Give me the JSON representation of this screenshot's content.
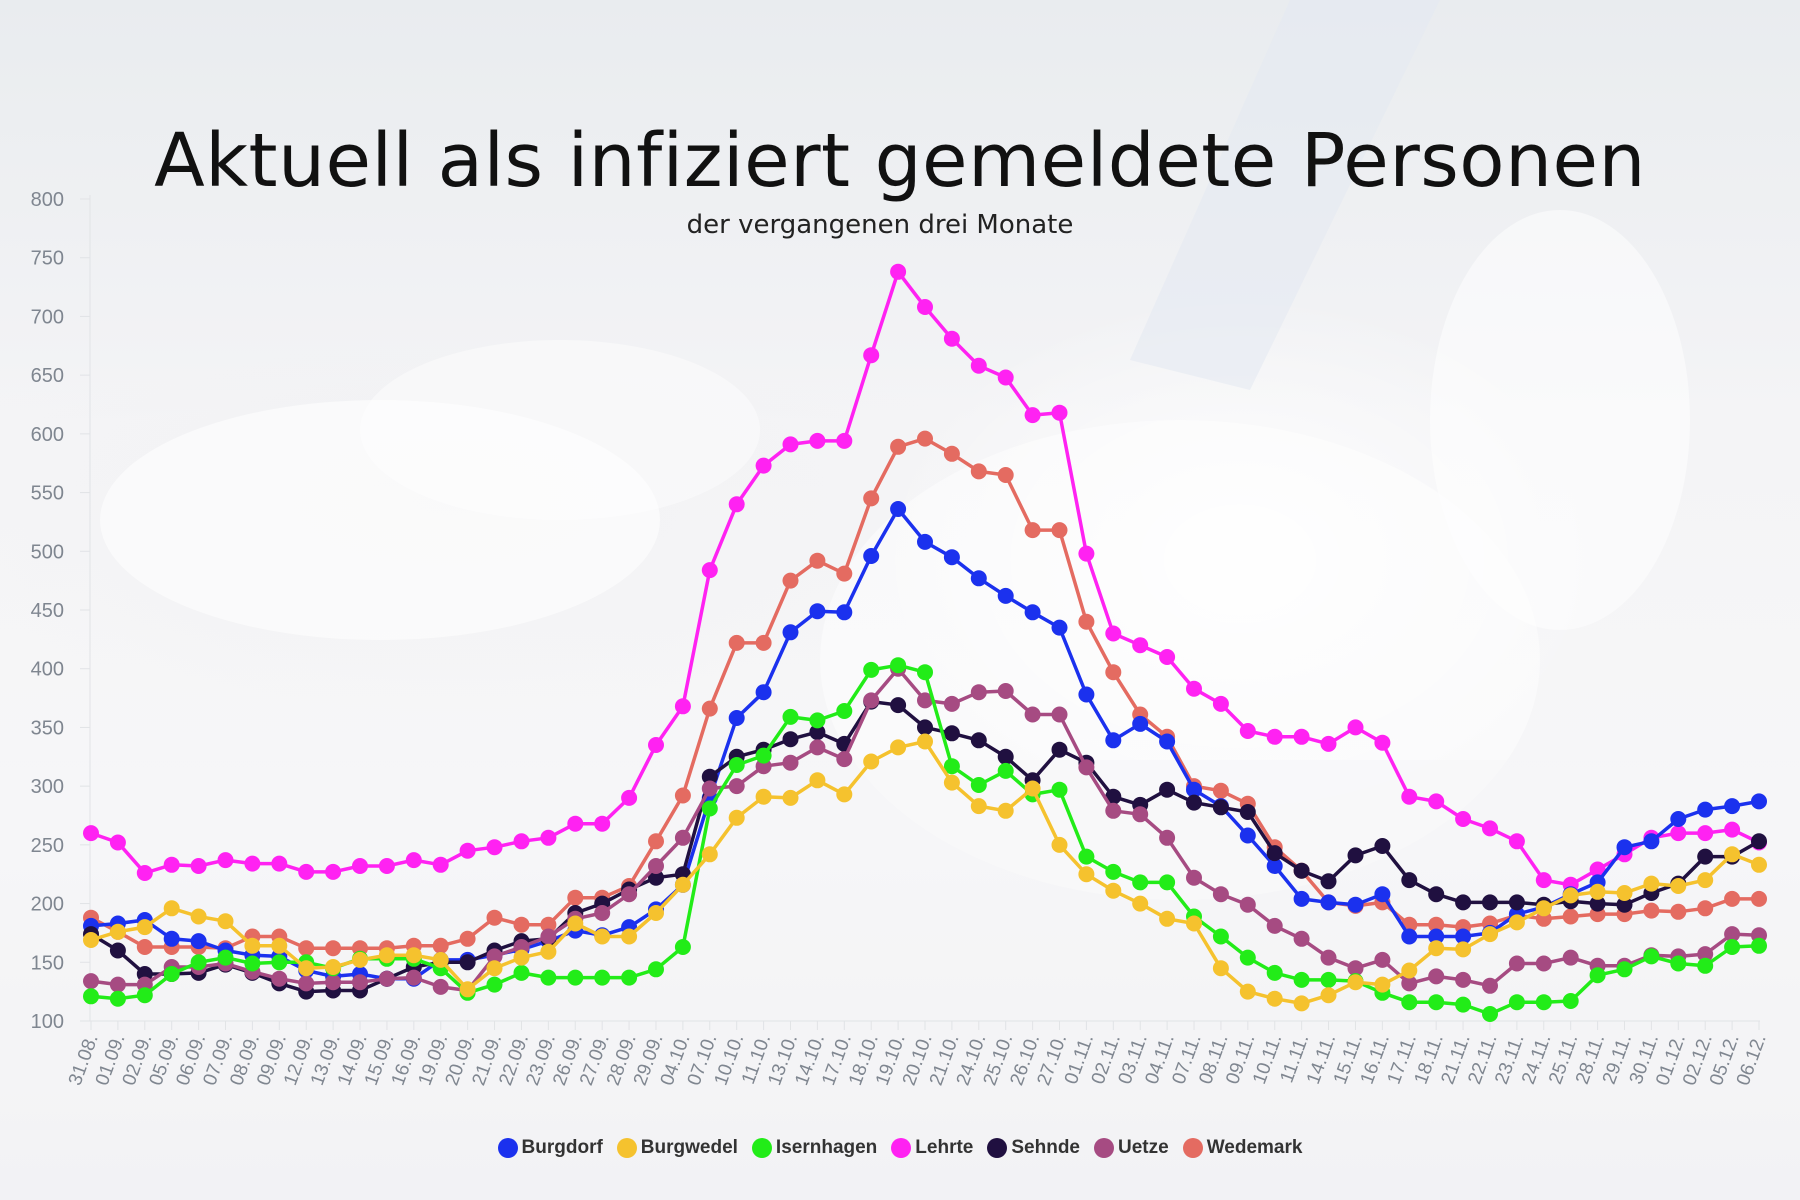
{
  "chart_data": {
    "type": "line",
    "title": "Aktuell als infiziert gemeldete Personen",
    "subtitle": "der vergangenen drei Monate",
    "xlabel": "",
    "ylabel": "",
    "ylim": [
      100,
      800
    ],
    "y_ticks": [
      100,
      150,
      200,
      250,
      300,
      350,
      400,
      450,
      500,
      550,
      600,
      650,
      700,
      750,
      800
    ],
    "grid": false,
    "legend_position": "bottom",
    "categories": [
      "31.08.",
      "01.09.",
      "02.09.",
      "05.09.",
      "06.09.",
      "07.09.",
      "08.09.",
      "09.09.",
      "12.09.",
      "13.09.",
      "14.09.",
      "15.09.",
      "16.09.",
      "19.09.",
      "20.09.",
      "21.09.",
      "22.09.",
      "23.09.",
      "26.09.",
      "27.09.",
      "28.09.",
      "29.09.",
      "04.10.",
      "07.10.",
      "10.10.",
      "11.10.",
      "13.10.",
      "14.10.",
      "17.10.",
      "18.10.",
      "19.10.",
      "20.10.",
      "21.10.",
      "24.10.",
      "25.10.",
      "26.10.",
      "27.10.",
      "01.11.",
      "02.11.",
      "03.11.",
      "04.11.",
      "07.11.",
      "08.11.",
      "09.11.",
      "10.11.",
      "11.11.",
      "14.11.",
      "15.11.",
      "16.11.",
      "17.11.",
      "18.11.",
      "21.11.",
      "22.11.",
      "23.11.",
      "24.11.",
      "25.11.",
      "28.11.",
      "29.11.",
      "30.11.",
      "01.12.",
      "02.12.",
      "05.12.",
      "06.12."
    ],
    "series": [
      {
        "name": "Lehrte",
        "color": "#ff22f2",
        "values": [
          260,
          252,
          226,
          233,
          232,
          237,
          234,
          234,
          227,
          227,
          232,
          232,
          237,
          233,
          245,
          248,
          253,
          256,
          268,
          268,
          290,
          335,
          368,
          484,
          540,
          573,
          591,
          594,
          594,
          667,
          738,
          708,
          681,
          658,
          648,
          616,
          618,
          498,
          430,
          420,
          410,
          383,
          370,
          347,
          342,
          342,
          336,
          350,
          337,
          291,
          287,
          272,
          264,
          253,
          220,
          216,
          229,
          242,
          256,
          260,
          260,
          263,
          252
        ]
      },
      {
        "name": "Wedemark",
        "color": "#e46b61",
        "values": [
          188,
          176,
          163,
          163,
          163,
          162,
          172,
          172,
          162,
          162,
          162,
          162,
          164,
          164,
          170,
          188,
          182,
          182,
          205,
          205,
          215,
          253,
          292,
          366,
          422,
          422,
          475,
          492,
          481,
          545,
          589,
          596,
          583,
          568,
          565,
          518,
          518,
          440,
          397,
          361,
          342,
          300,
          296,
          285,
          248,
          228,
          201,
          198,
          201,
          182,
          182,
          180,
          183,
          190,
          187,
          189,
          191,
          191,
          194,
          193,
          196,
          204,
          204
        ]
      },
      {
        "name": "Burgdorf",
        "color": "#1b31ee",
        "values": [
          181,
          183,
          186,
          170,
          168,
          160,
          156,
          155,
          143,
          138,
          140,
          136,
          136,
          152,
          152,
          156,
          161,
          168,
          177,
          173,
          180,
          195,
          216,
          290,
          358,
          380,
          431,
          449,
          448,
          496,
          536,
          508,
          495,
          477,
          462,
          448,
          435,
          378,
          339,
          353,
          338,
          297,
          283,
          258,
          232,
          204,
          201,
          199,
          208,
          172,
          172,
          172,
          175,
          191,
          197,
          208,
          218,
          248,
          253,
          272,
          280,
          283,
          287
        ]
      },
      {
        "name": "Sehnde",
        "color": "#201040",
        "values": [
          174,
          160,
          140,
          140,
          141,
          148,
          141,
          132,
          125,
          126,
          126,
          136,
          146,
          150,
          150,
          160,
          168,
          170,
          192,
          200,
          212,
          222,
          225,
          308,
          325,
          331,
          340,
          346,
          336,
          372,
          369,
          350,
          345,
          339,
          325,
          305,
          331,
          320,
          291,
          284,
          297,
          286,
          282,
          278,
          243,
          228,
          219,
          241,
          249,
          220,
          208,
          201,
          201,
          201,
          199,
          202,
          200,
          199,
          209,
          217,
          240,
          240,
          253
        ]
      },
      {
        "name": "Uetze",
        "color": "#a64b82",
        "values": [
          134,
          131,
          131,
          146,
          146,
          149,
          142,
          136,
          132,
          133,
          133,
          136,
          137,
          129,
          126,
          155,
          163,
          172,
          187,
          192,
          208,
          232,
          256,
          298,
          300,
          317,
          320,
          333,
          323,
          373,
          400,
          373,
          370,
          380,
          381,
          361,
          361,
          316,
          279,
          276,
          256,
          222,
          208,
          199,
          181,
          170,
          154,
          145,
          152,
          132,
          138,
          135,
          130,
          149,
          149,
          154,
          147,
          147,
          156,
          155,
          157,
          174,
          173
        ]
      },
      {
        "name": "Isernhagen",
        "color": "#22ec18",
        "values": [
          121,
          119,
          122,
          140,
          150,
          154,
          149,
          150,
          150,
          145,
          153,
          153,
          153,
          145,
          124,
          131,
          141,
          137,
          137,
          137,
          137,
          144,
          163,
          281,
          318,
          326,
          359,
          356,
          364,
          399,
          403,
          397,
          317,
          301,
          313,
          293,
          297,
          240,
          227,
          218,
          218,
          189,
          172,
          154,
          141,
          135,
          135,
          134,
          124,
          116,
          116,
          114,
          106,
          116,
          116,
          117,
          139,
          144,
          155,
          149,
          147,
          163,
          164
        ]
      },
      {
        "name": "Burgwedel",
        "color": "#f5c22e",
        "values": [
          169,
          176,
          180,
          196,
          189,
          185,
          164,
          164,
          145,
          146,
          152,
          156,
          156,
          152,
          127,
          145,
          154,
          159,
          183,
          172,
          172,
          192,
          216,
          242,
          273,
          291,
          290,
          305,
          293,
          321,
          333,
          338,
          303,
          283,
          279,
          298,
          250,
          225,
          211,
          200,
          187,
          183,
          145,
          125,
          119,
          115,
          122,
          133,
          131,
          143,
          162,
          161,
          174,
          184,
          196,
          207,
          210,
          209,
          217,
          215,
          220,
          242,
          233
        ]
      }
    ],
    "legend_order": [
      "Burgdorf",
      "Burgwedel",
      "Isernhagen",
      "Lehrte",
      "Sehnde",
      "Uetze",
      "Wedemark"
    ]
  }
}
